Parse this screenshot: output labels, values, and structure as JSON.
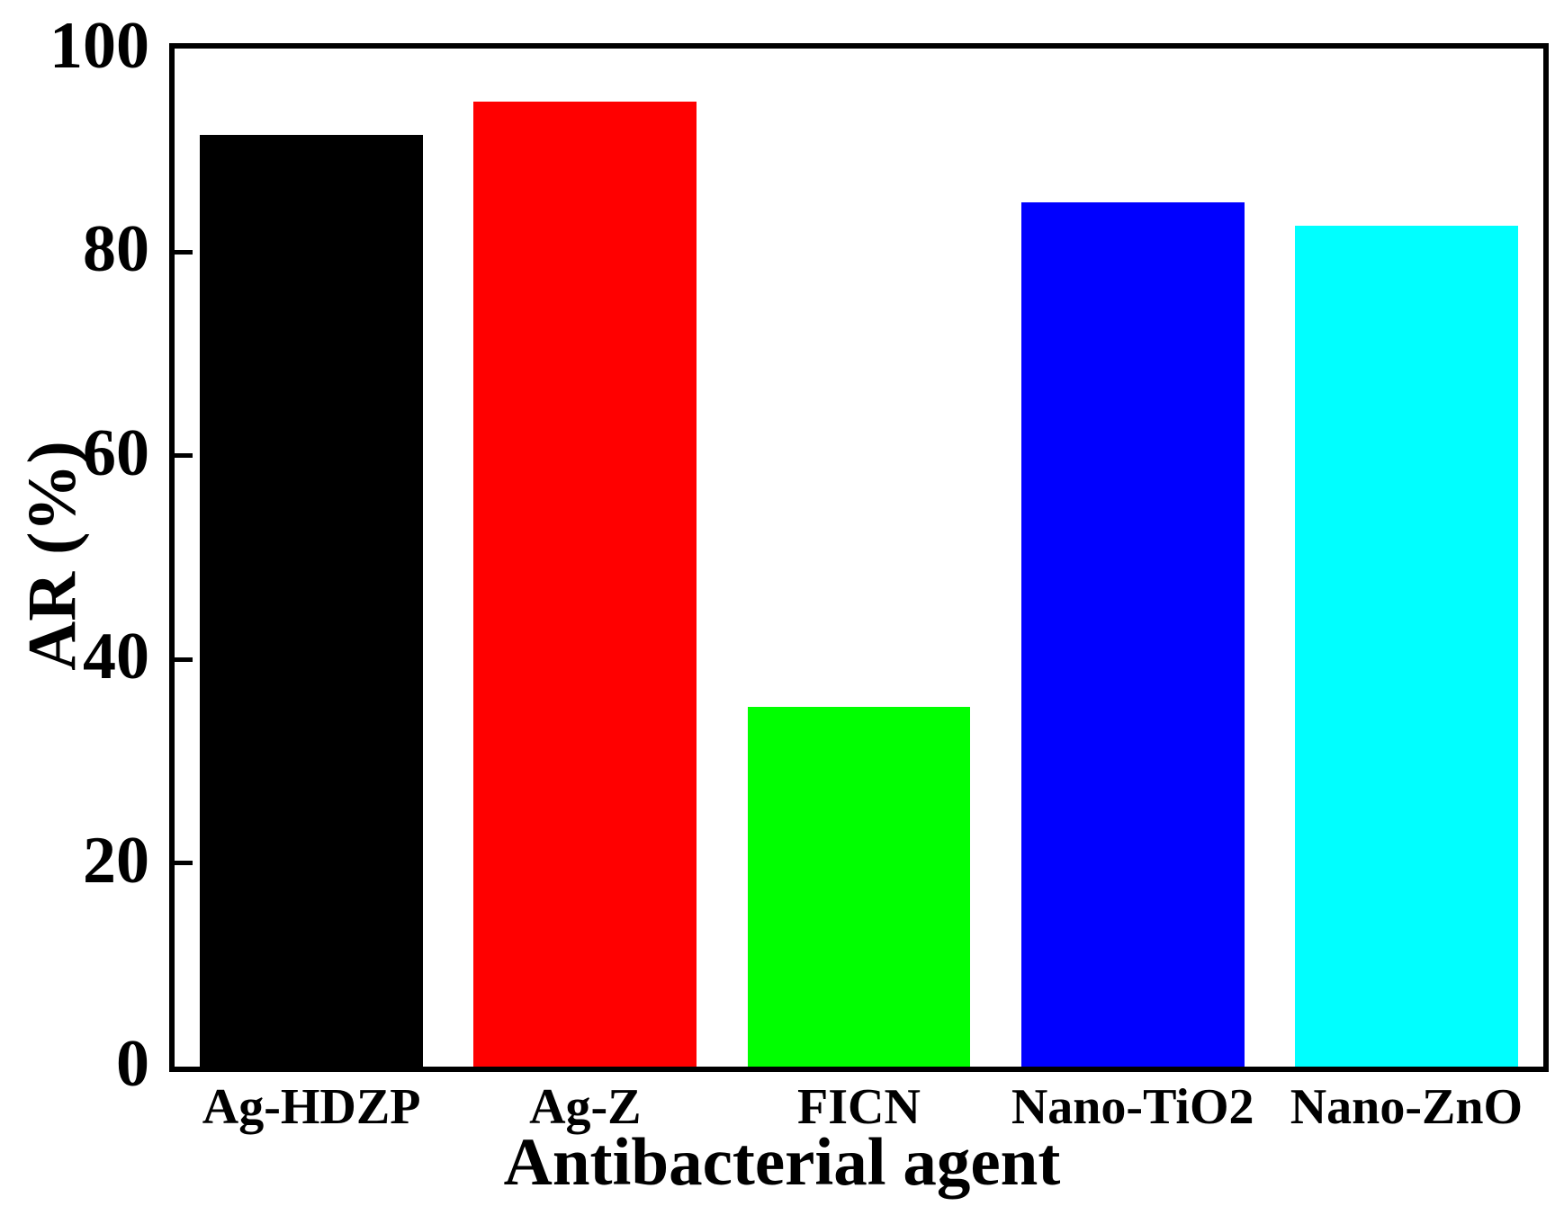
{
  "chart_data": {
    "type": "bar",
    "title": "",
    "xlabel": "Antibacterial agent",
    "ylabel": "AR (%)",
    "categories": [
      "Ag-HDZP",
      "Ag-Z",
      "FICN",
      "Nano-TiO2",
      "Nano-ZnO"
    ],
    "values": [
      91.5,
      94.8,
      35.3,
      84.9,
      82.6
    ],
    "bar_colors": [
      "#000000",
      "#ff0000",
      "#00ff00",
      "#0000ff",
      "#00ffff"
    ],
    "ylim": [
      0,
      100
    ],
    "yticks": [
      0,
      20,
      40,
      60,
      80,
      100
    ],
    "ytick_stub_values": [
      20,
      40,
      60,
      80
    ],
    "grid": false,
    "legend": null,
    "axis_color": "#000000",
    "background_color": "#ffffff"
  }
}
